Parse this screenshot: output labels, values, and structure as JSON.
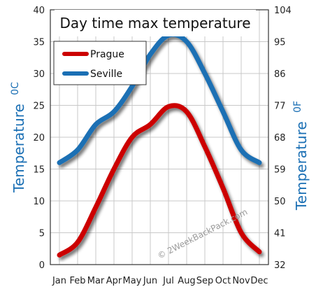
{
  "chart_data": {
    "type": "line",
    "title": "Day time max temperature",
    "categories": [
      "Jan",
      "Feb",
      "Mar",
      "Apr",
      "May",
      "Jun",
      "Jul",
      "Aug",
      "Sep",
      "Oct",
      "Nov",
      "Dec"
    ],
    "series": [
      {
        "name": "Prague",
        "color": "#cc0000",
        "values": [
          1.5,
          3.5,
          9,
          15,
          20,
          22,
          24.8,
          24,
          18.5,
          12,
          5,
          2
        ]
      },
      {
        "name": "Seville",
        "color": "#1a6fb4",
        "values": [
          16,
          18,
          22,
          24,
          28,
          33,
          36,
          35,
          30,
          24,
          18,
          16
        ]
      }
    ],
    "ylabel_left": "Temperature",
    "ylabel_left_unit": "0C",
    "ylabel_right": "Temperature",
    "ylabel_right_unit": "0F",
    "ylim_left": [
      0,
      40
    ],
    "yticks_left": [
      "0",
      "5",
      "10",
      "15",
      "20",
      "25",
      "30",
      "35",
      "40"
    ],
    "yticks_right": [
      "32",
      "41",
      "50",
      "59",
      "68",
      "77",
      "86",
      "95",
      "104"
    ],
    "grid": true,
    "legend_placement": "top-left",
    "watermark": "© 2WeekBackPack.com"
  }
}
